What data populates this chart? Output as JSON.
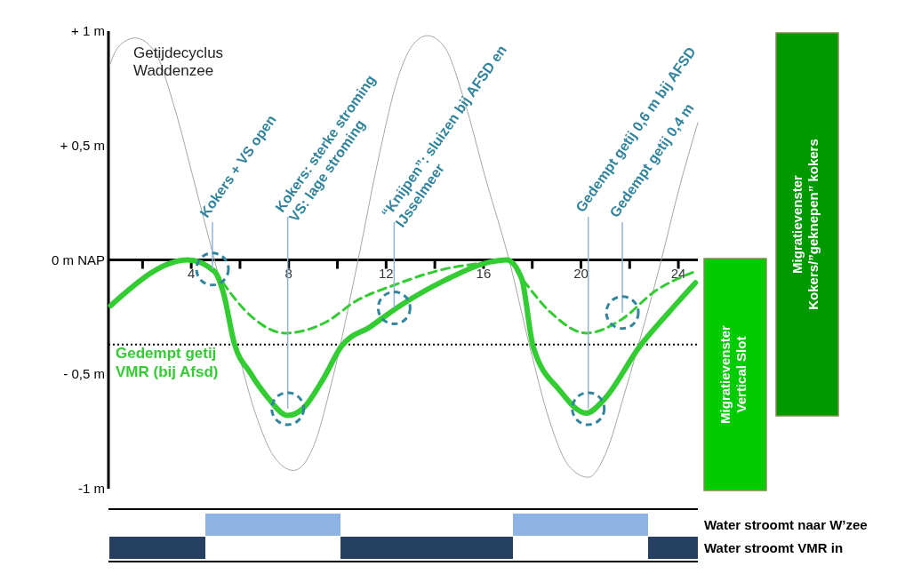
{
  "chart_data": {
    "type": "line",
    "xlim": [
      0.6,
      24.8
    ],
    "ylim": [
      -1,
      1
    ],
    "xticks": [
      {
        "value": 2,
        "label": null
      },
      4,
      {
        "value": 6,
        "label": null
      },
      8,
      {
        "value": 10,
        "label": null
      },
      12,
      {
        "value": 14,
        "label": null
      },
      16,
      {
        "value": 18,
        "label": null
      },
      20,
      {
        "value": 22,
        "label": null
      },
      24
    ],
    "yticks": [
      {
        "value": -1,
        "label": "-1 m"
      },
      {
        "value": -0.5,
        "label": "- 0,5  m"
      },
      {
        "value": 0,
        "label": "0 m NAP"
      },
      {
        "value": 0.5,
        "label": "+ 0,5  m"
      },
      {
        "value": 1,
        "label": "+ 1  m"
      }
    ],
    "grid": false,
    "marker": "none",
    "series": [
      {
        "name": "Getijdecyclus\nWaddenzee",
        "color": "#a6a6a6",
        "line_style": "solid",
        "x": [
          0.65,
          1.0,
          1.7,
          2.5,
          3.3,
          4.1,
          4.95,
          5.8,
          6.6,
          7.4,
          8.2,
          9.0,
          9.8,
          10.85,
          11.7,
          12.5,
          13.1,
          13.7,
          14.4,
          15.2,
          16.1,
          17.05,
          17.9,
          18.7,
          19.5,
          20.3,
          21.0,
          21.8,
          22.6,
          23.3,
          24.0,
          24.8
        ],
        "values": [
          0.85,
          0.93,
          0.97,
          0.91,
          0.67,
          0.35,
          0,
          -0.35,
          -0.66,
          -0.86,
          -0.92,
          -0.82,
          -0.52,
          0,
          0.45,
          0.8,
          0.94,
          0.98,
          0.93,
          0.7,
          0.35,
          0,
          -0.38,
          -0.7,
          -0.9,
          -0.95,
          -0.85,
          -0.58,
          -0.28,
          0,
          0.3,
          0.6
        ]
      },
      {
        "name": "Gedempt getij\nVMR (bij Afsd)",
        "color": "#33cc33",
        "line_style": "solid",
        "x": [
          0.69,
          3.85,
          4.95,
          5.31,
          5.78,
          6.4,
          7.13,
          7.96,
          8.58,
          9.42,
          10.15,
          11.38,
          12.58,
          14.4,
          16.22,
          16.95,
          17.56,
          18.04,
          19.13,
          20.22,
          20.95,
          22.4,
          23.6,
          24.7
        ],
        "values": [
          -0.2,
          0,
          -0.05,
          -0.14,
          -0.37,
          -0.49,
          -0.6,
          -0.68,
          -0.65,
          -0.52,
          -0.38,
          -0.29,
          -0.2,
          -0.09,
          -0.01,
          0,
          -0.08,
          -0.38,
          -0.57,
          -0.67,
          -0.61,
          -0.38,
          -0.23,
          -0.1
        ]
      },
      {
        "color": "#33cc33",
        "line_style": "dashed",
        "x": [
          5.0,
          5.31,
          6.5,
          7.85,
          9.56,
          10.76,
          12.33,
          14.4,
          16.22,
          16.95,
          17.56,
          18.76,
          20.22,
          21.67,
          23.0,
          24.7
        ],
        "values": [
          -0.05,
          -0.1,
          -0.25,
          -0.32,
          -0.27,
          -0.18,
          -0.11,
          -0.04,
          -0.01,
          0,
          -0.08,
          -0.23,
          -0.32,
          -0.26,
          -0.14,
          -0.05
        ]
      }
    ],
    "ref_lines": [
      {
        "axis": "y",
        "value": -0.37,
        "color": "#000000",
        "line_style": "dotted"
      }
    ],
    "annotations": [
      "Migratievenster\nVertical Slot",
      "Migratievenster\nKokers/”geknepen” kokers",
      "Water stroomt naar W’zee",
      "Water stroomt VMR in",
      {
        "text": "Kokers + VS open",
        "x": 4.87,
        "y": -0.04
      },
      {
        "text": "Kokers: sterke stroming\nVS: lage stroming",
        "x": 7.96,
        "y": -0.65
      },
      {
        "text": "“Knijpen”: sluizen bij AFSD en\nIJsselmeer",
        "x": 12.33,
        "y": -0.21
      },
      {
        "text": "Gedempt getij 0,6 m bij AFSD",
        "x": 20.3,
        "y": -0.65
      },
      {
        "text": "Gedempt getij 0,4 m",
        "x": 21.7,
        "y": -0.23
      }
    ]
  }
}
